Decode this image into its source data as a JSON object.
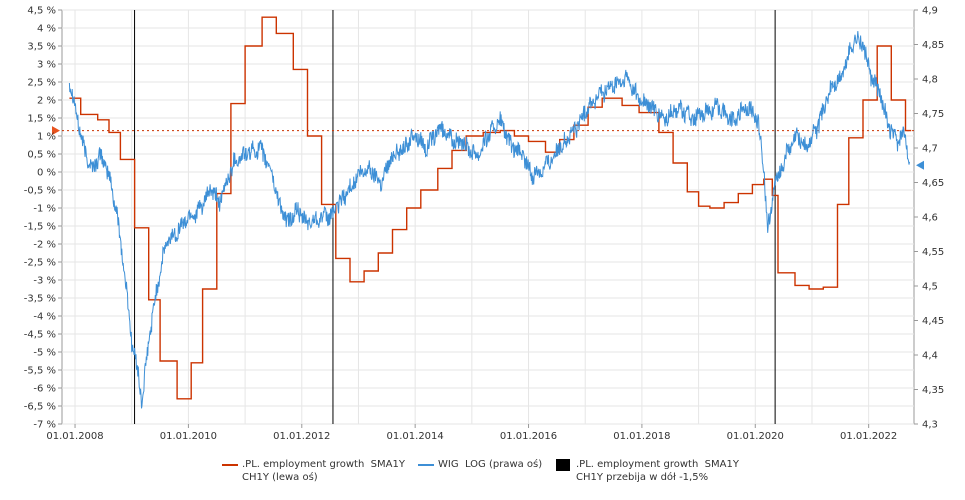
{
  "chart_data": {
    "type": "line",
    "title": "",
    "x_ticks": [
      "01.01.2008",
      "01.01.2010",
      "01.01.2012",
      "01.01.2014",
      "01.01.2016",
      "01.01.2018",
      "01.01.2020",
      "01.01.2022"
    ],
    "left_axis": {
      "range": [
        -7,
        4.5
      ],
      "step": 0.5,
      "tick_labels": [
        "4,5 %",
        "4 %",
        "3,5 %",
        "3 %",
        "2,5 %",
        "2 %",
        "1,5 %",
        "1 %",
        "0,5 %",
        "0 %",
        "-0,5 %",
        "-1 %",
        "-1,5 %",
        "-2 %",
        "-2,5 %",
        "-3 %",
        "-3,5 %",
        "-4 %",
        "-4,5 %",
        "-5 %",
        "-5,5 %",
        "-6 %",
        "-6,5 %",
        "-7 %"
      ]
    },
    "right_axis": {
      "range": [
        4.3,
        4.9
      ],
      "step": 0.05,
      "tick_labels": [
        "4,9",
        "4,85",
        "4,8",
        "4,75",
        "4,7",
        "4,65",
        "4,6",
        "4,55",
        "4,5",
        "4,45",
        "4,4",
        "4,35",
        "4,3"
      ]
    },
    "grid": true,
    "reference_line": {
      "axis": "left",
      "value": 1.15,
      "color": "#cc3300"
    },
    "markers": [
      {
        "axis": "left",
        "value": 1.15,
        "color": "#e8531f"
      },
      {
        "axis": "right",
        "value": 4.675,
        "color": "#3d8fd6"
      }
    ],
    "signal_dates": [
      2009.05,
      2012.55,
      2020.35
    ],
    "series": [
      {
        "name": ".PL. employment growth SMA1Y CH1Y (lewa oś)",
        "axis": "left",
        "style": "step",
        "color": "#cc3300",
        "points": [
          [
            2007.9,
            2.05
          ],
          [
            2008.1,
            1.6
          ],
          [
            2008.4,
            1.45
          ],
          [
            2008.6,
            1.1
          ],
          [
            2008.8,
            0.35
          ],
          [
            2009.05,
            -1.55
          ],
          [
            2009.3,
            -3.55
          ],
          [
            2009.5,
            -5.25
          ],
          [
            2009.8,
            -6.3
          ],
          [
            2010.05,
            -5.3
          ],
          [
            2010.25,
            -3.25
          ],
          [
            2010.5,
            -0.6
          ],
          [
            2010.75,
            1.9
          ],
          [
            2011.0,
            3.5
          ],
          [
            2011.3,
            4.3
          ],
          [
            2011.55,
            3.85
          ],
          [
            2011.85,
            2.85
          ],
          [
            2012.1,
            1.0
          ],
          [
            2012.35,
            -0.9
          ],
          [
            2012.6,
            -2.4
          ],
          [
            2012.85,
            -3.05
          ],
          [
            2013.1,
            -2.75
          ],
          [
            2013.35,
            -2.25
          ],
          [
            2013.6,
            -1.6
          ],
          [
            2013.85,
            -1.0
          ],
          [
            2014.1,
            -0.5
          ],
          [
            2014.4,
            0.1
          ],
          [
            2014.65,
            0.6
          ],
          [
            2014.9,
            1.0
          ],
          [
            2015.2,
            1.1
          ],
          [
            2015.5,
            1.15
          ],
          [
            2015.75,
            1.0
          ],
          [
            2016.0,
            0.85
          ],
          [
            2016.3,
            0.55
          ],
          [
            2016.55,
            0.9
          ],
          [
            2016.8,
            1.3
          ],
          [
            2017.05,
            1.8
          ],
          [
            2017.3,
            2.05
          ],
          [
            2017.65,
            1.85
          ],
          [
            2017.95,
            1.65
          ],
          [
            2018.3,
            1.1
          ],
          [
            2018.55,
            0.25
          ],
          [
            2018.8,
            -0.55
          ],
          [
            2019.0,
            -0.95
          ],
          [
            2019.2,
            -1.0
          ],
          [
            2019.45,
            -0.85
          ],
          [
            2019.7,
            -0.6
          ],
          [
            2019.95,
            -0.35
          ],
          [
            2020.15,
            -0.2
          ],
          [
            2020.3,
            -0.65
          ],
          [
            2020.4,
            -2.8
          ],
          [
            2020.7,
            -3.15
          ],
          [
            2020.95,
            -3.25
          ],
          [
            2021.2,
            -3.2
          ],
          [
            2021.45,
            -0.9
          ],
          [
            2021.65,
            0.95
          ],
          [
            2021.9,
            2.0
          ],
          [
            2022.15,
            3.5
          ],
          [
            2022.4,
            2.0
          ],
          [
            2022.65,
            1.15
          ],
          [
            2022.75,
            1.15
          ]
        ]
      },
      {
        "name": "WIG LOG (prawa oś)",
        "axis": "right",
        "style": "line",
        "color": "#3d8fd6",
        "points": [
          [
            2007.9,
            4.8
          ],
          [
            2008.0,
            4.76
          ],
          [
            2008.15,
            4.7
          ],
          [
            2008.3,
            4.67
          ],
          [
            2008.45,
            4.69
          ],
          [
            2008.6,
            4.66
          ],
          [
            2008.75,
            4.6
          ],
          [
            2008.9,
            4.5
          ],
          [
            2009.0,
            4.42
          ],
          [
            2009.1,
            4.38
          ],
          [
            2009.18,
            4.33
          ],
          [
            2009.3,
            4.42
          ],
          [
            2009.45,
            4.5
          ],
          [
            2009.6,
            4.56
          ],
          [
            2009.8,
            4.58
          ],
          [
            2010.0,
            4.6
          ],
          [
            2010.2,
            4.61
          ],
          [
            2010.4,
            4.64
          ],
          [
            2010.55,
            4.62
          ],
          [
            2010.8,
            4.68
          ],
          [
            2011.0,
            4.69
          ],
          [
            2011.25,
            4.7
          ],
          [
            2011.45,
            4.67
          ],
          [
            2011.6,
            4.62
          ],
          [
            2011.75,
            4.59
          ],
          [
            2011.9,
            4.61
          ],
          [
            2012.1,
            4.59
          ],
          [
            2012.3,
            4.6
          ],
          [
            2012.5,
            4.6
          ],
          [
            2012.75,
            4.63
          ],
          [
            2013.0,
            4.66
          ],
          [
            2013.2,
            4.67
          ],
          [
            2013.4,
            4.65
          ],
          [
            2013.6,
            4.69
          ],
          [
            2013.8,
            4.7
          ],
          [
            2014.0,
            4.72
          ],
          [
            2014.2,
            4.7
          ],
          [
            2014.45,
            4.73
          ],
          [
            2014.7,
            4.71
          ],
          [
            2014.95,
            4.7
          ],
          [
            2015.1,
            4.69
          ],
          [
            2015.3,
            4.72
          ],
          [
            2015.5,
            4.74
          ],
          [
            2015.7,
            4.7
          ],
          [
            2015.9,
            4.69
          ],
          [
            2016.05,
            4.66
          ],
          [
            2016.25,
            4.67
          ],
          [
            2016.45,
            4.69
          ],
          [
            2016.65,
            4.71
          ],
          [
            2016.85,
            4.73
          ],
          [
            2017.05,
            4.76
          ],
          [
            2017.3,
            4.78
          ],
          [
            2017.5,
            4.79
          ],
          [
            2017.75,
            4.8
          ],
          [
            2017.95,
            4.77
          ],
          [
            2018.15,
            4.76
          ],
          [
            2018.4,
            4.74
          ],
          [
            2018.65,
            4.76
          ],
          [
            2018.9,
            4.74
          ],
          [
            2019.1,
            4.75
          ],
          [
            2019.35,
            4.76
          ],
          [
            2019.6,
            4.74
          ],
          [
            2019.85,
            4.76
          ],
          [
            2020.05,
            4.74
          ],
          [
            2020.15,
            4.67
          ],
          [
            2020.22,
            4.58
          ],
          [
            2020.35,
            4.65
          ],
          [
            2020.55,
            4.69
          ],
          [
            2020.75,
            4.72
          ],
          [
            2020.9,
            4.7
          ],
          [
            2021.1,
            4.73
          ],
          [
            2021.35,
            4.79
          ],
          [
            2021.5,
            4.8
          ],
          [
            2021.75,
            4.86
          ],
          [
            2021.9,
            4.85
          ],
          [
            2022.05,
            4.8
          ],
          [
            2022.2,
            4.78
          ],
          [
            2022.35,
            4.73
          ],
          [
            2022.5,
            4.71
          ],
          [
            2022.65,
            4.72
          ],
          [
            2022.72,
            4.68
          ]
        ]
      }
    ],
    "legend": {
      "placement": "bottom",
      "items": [
        {
          "label": ".PL. employment growth  SMA1Y\nCH1Y (lewa oś)",
          "color": "#cc3300",
          "kind": "line"
        },
        {
          "label": "WIG  LOG (prawa oś)",
          "color": "#3d8fd6",
          "kind": "line"
        },
        {
          "label": ".PL. employment growth  SMA1Y\nCH1Y przebija w dół -1,5%",
          "color": "#000000",
          "kind": "box"
        }
      ]
    }
  }
}
